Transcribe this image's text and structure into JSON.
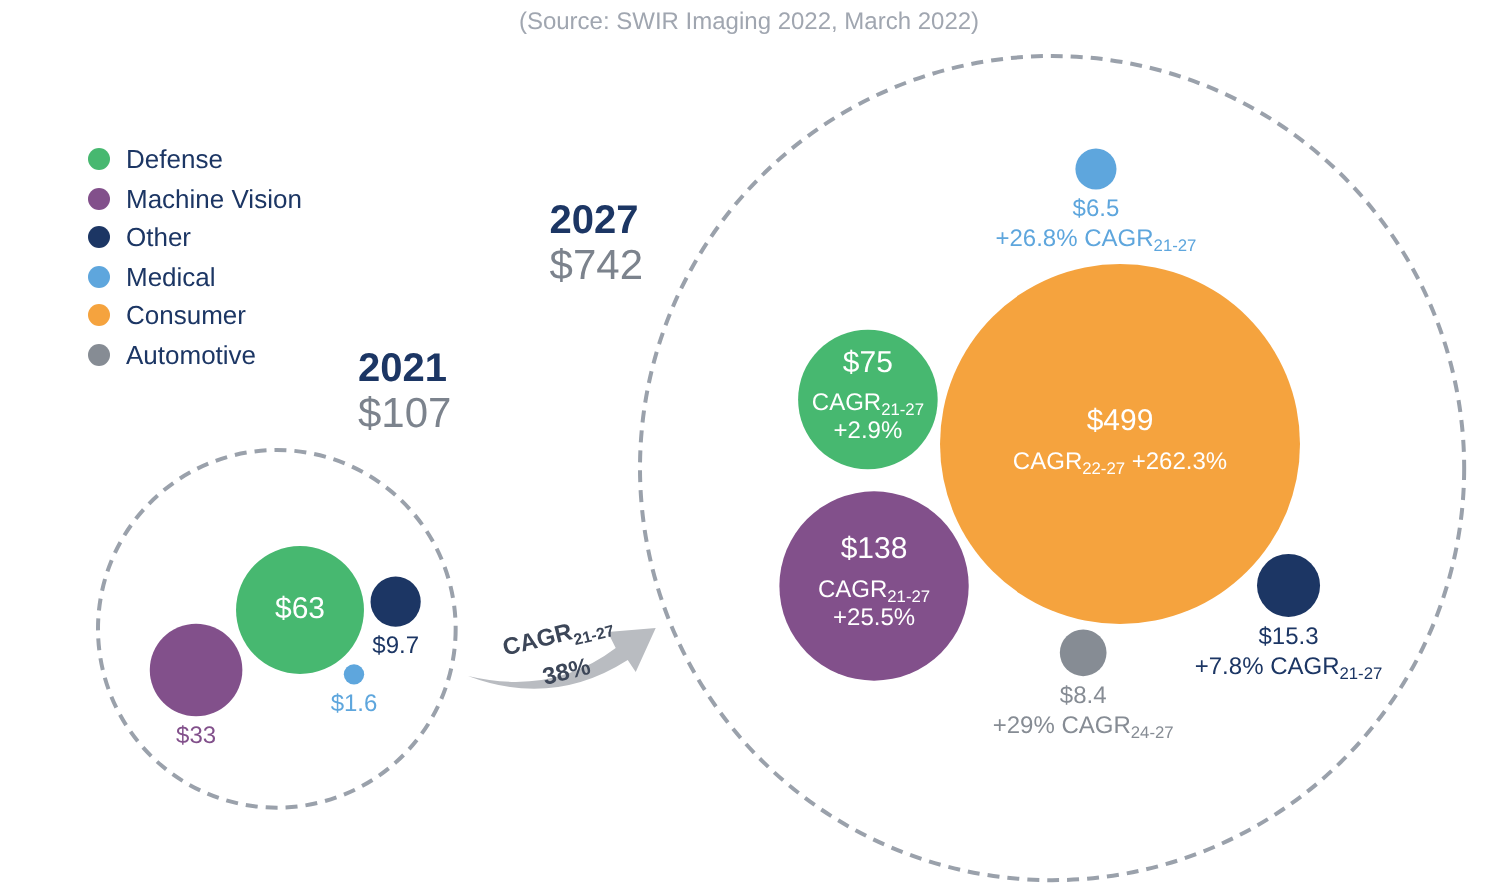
{
  "chart_data": {
    "type": "other",
    "categories": [
      "2021",
      "2027"
    ],
    "series": [
      {
        "name": "Defense",
        "color": "#47b870",
        "values": [
          63,
          75
        ],
        "value_labels": [
          "$63",
          "$75\nCAGR$_{21-27}$ +2.9%"
        ]
      },
      {
        "name": "Machine Vision",
        "color": "#82508b",
        "values": [
          33,
          138
        ],
        "value_labels": [
          "$33",
          "$138\nCAGR$_{21-27}$ +25.5%"
        ]
      },
      {
        "name": "Other",
        "color": "#1c3664",
        "values": [
          9.7,
          15.3
        ],
        "value_labels": [
          "$9.7",
          "$15.3\n+7.8% CAGR$_{21-27}$"
        ]
      },
      {
        "name": "Medical",
        "color": "#5ea6dd",
        "values": [
          1.6,
          6.5
        ],
        "value_labels": [
          "$1.6",
          "$6.5\n+26.8% CAGR$_{21-27}$"
        ]
      },
      {
        "name": "Consumer",
        "color": "#f5a33e",
        "values": [
          null,
          499
        ],
        "value_labels": [
          null,
          "$499\nCAGR$_{22-27}$ +262.3%"
        ]
      },
      {
        "name": "Automotive",
        "color": "#868c94",
        "values": [
          null,
          8.4
        ],
        "value_labels": [
          null,
          "$8.4\n+29% CAGR$_{24-27}$"
        ]
      }
    ],
    "totals": [
      "$107",
      "$742"
    ],
    "legend": "top left",
    "annotations": [
      "(Source: SWIR Imaging 2022, March 2022)",
      "CAGR$_{21-27}$ 38%"
    ]
  }
}
